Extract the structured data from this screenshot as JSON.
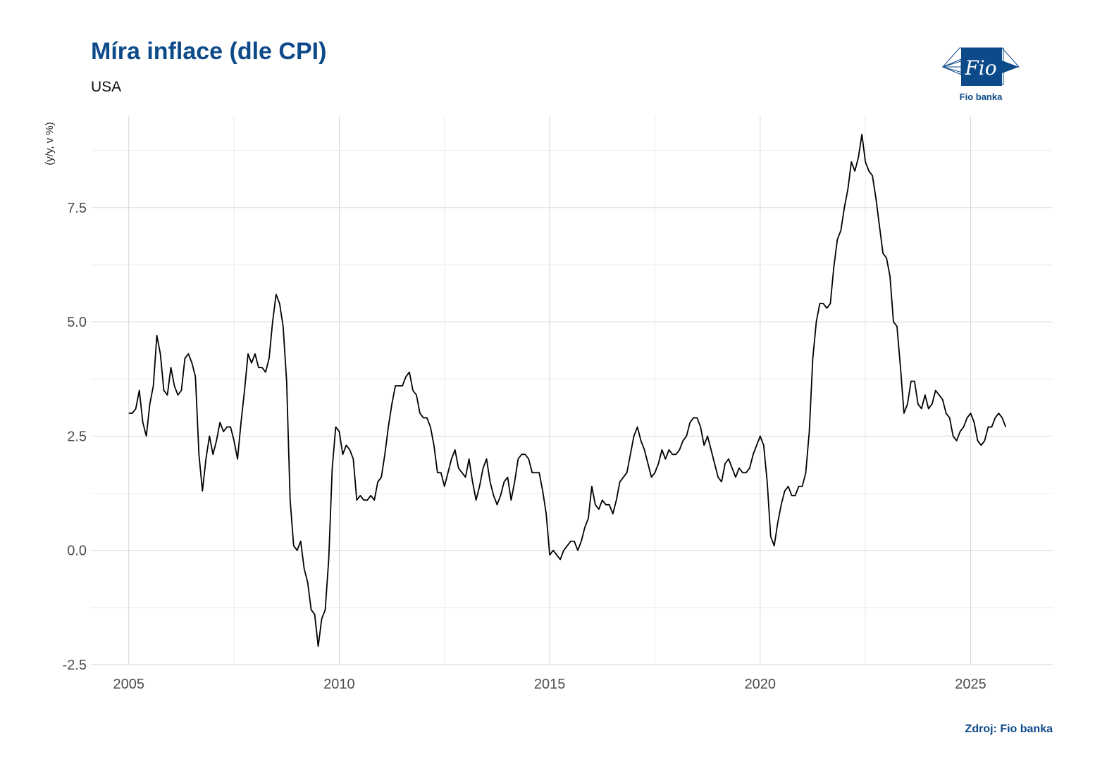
{
  "header": {
    "title": "Míra inflace (dle CPI)",
    "subtitle": "USA"
  },
  "logo": {
    "mark_text": "Fio",
    "name": "Fio banka",
    "color": "#0d4a8a"
  },
  "footer": {
    "source": "Zdroj: Fio banka"
  },
  "chart_data": {
    "type": "line",
    "ylabel": "(y/y, v %)",
    "xlabel": "",
    "xlim": [
      2004.1,
      2026.95
    ],
    "ylim": [
      -2.5,
      9.5
    ],
    "x_ticks": [
      2005,
      2010,
      2015,
      2020,
      2025
    ],
    "x_tick_labels": [
      "2005",
      "2010",
      "2015",
      "2020",
      "2025"
    ],
    "y_ticks": [
      -2.5,
      0.0,
      2.5,
      5.0,
      7.5
    ],
    "y_tick_labels": [
      "-2.5",
      "0.0",
      "2.5",
      "5.0",
      "7.5"
    ],
    "grid": true,
    "line_color": "#000000",
    "series": [
      {
        "start": "2005-01",
        "frequency": "monthly",
        "values": [
          3.0,
          3.0,
          3.1,
          3.5,
          2.8,
          2.5,
          3.2,
          3.6,
          4.7,
          4.3,
          3.5,
          3.4,
          4.0,
          3.6,
          3.4,
          3.5,
          4.2,
          4.3,
          4.1,
          3.8,
          2.1,
          1.3,
          2.0,
          2.5,
          2.1,
          2.4,
          2.8,
          2.6,
          2.7,
          2.7,
          2.4,
          2.0,
          2.8,
          3.5,
          4.3,
          4.1,
          4.3,
          4.0,
          4.0,
          3.9,
          4.2,
          5.0,
          5.6,
          5.4,
          4.9,
          3.7,
          1.1,
          0.1,
          0.0,
          0.2,
          -0.4,
          -0.7,
          -1.3,
          -1.4,
          -2.1,
          -1.5,
          -1.3,
          -0.2,
          1.8,
          2.7,
          2.6,
          2.1,
          2.3,
          2.2,
          2.0,
          1.1,
          1.2,
          1.1,
          1.1,
          1.2,
          1.1,
          1.5,
          1.6,
          2.1,
          2.7,
          3.2,
          3.6,
          3.6,
          3.6,
          3.8,
          3.9,
          3.5,
          3.4,
          3.0,
          2.9,
          2.9,
          2.7,
          2.3,
          1.7,
          1.7,
          1.4,
          1.7,
          2.0,
          2.2,
          1.8,
          1.7,
          1.6,
          2.0,
          1.5,
          1.1,
          1.4,
          1.8,
          2.0,
          1.5,
          1.2,
          1.0,
          1.2,
          1.5,
          1.6,
          1.1,
          1.5,
          2.0,
          2.1,
          2.1,
          2.0,
          1.7,
          1.7,
          1.7,
          1.3,
          0.8,
          -0.1,
          0.0,
          -0.1,
          -0.2,
          0.0,
          0.1,
          0.2,
          0.2,
          0.0,
          0.2,
          0.5,
          0.7,
          1.4,
          1.0,
          0.9,
          1.1,
          1.0,
          1.0,
          0.8,
          1.1,
          1.5,
          1.6,
          1.7,
          2.1,
          2.5,
          2.7,
          2.4,
          2.2,
          1.9,
          1.6,
          1.7,
          1.9,
          2.2,
          2.0,
          2.2,
          2.1,
          2.1,
          2.2,
          2.4,
          2.5,
          2.8,
          2.9,
          2.9,
          2.7,
          2.3,
          2.5,
          2.2,
          1.9,
          1.6,
          1.5,
          1.9,
          2.0,
          1.8,
          1.6,
          1.8,
          1.7,
          1.7,
          1.8,
          2.1,
          2.3,
          2.5,
          2.3,
          1.5,
          0.3,
          0.1,
          0.6,
          1.0,
          1.3,
          1.4,
          1.2,
          1.2,
          1.4,
          1.4,
          1.7,
          2.6,
          4.2,
          5.0,
          5.4,
          5.4,
          5.3,
          5.4,
          6.2,
          6.8,
          7.0,
          7.5,
          7.9,
          8.5,
          8.3,
          8.6,
          9.1,
          8.5,
          8.3,
          8.2,
          7.7,
          7.1,
          6.5,
          6.4,
          6.0,
          5.0,
          4.9,
          4.0,
          3.0,
          3.2,
          3.7,
          3.7,
          3.2,
          3.1,
          3.4,
          3.1,
          3.2,
          3.5,
          3.4,
          3.3,
          3.0,
          2.9,
          2.5,
          2.4,
          2.6,
          2.7,
          2.9,
          3.0,
          2.8,
          2.4,
          2.3,
          2.4,
          2.7,
          2.7,
          2.9,
          3.0,
          2.9,
          2.7
        ]
      }
    ]
  }
}
